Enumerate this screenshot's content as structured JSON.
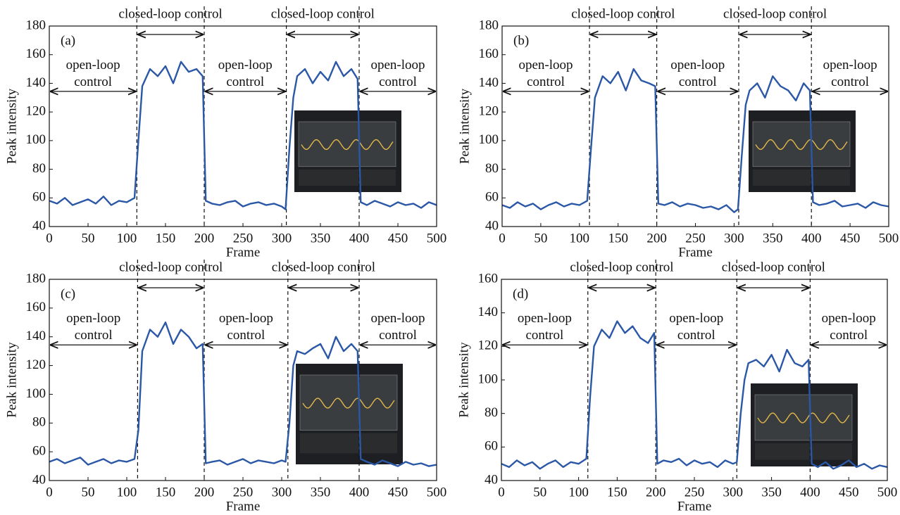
{
  "chart_data": [
    {
      "type": "line",
      "panel_label": "(a)",
      "x_label": "Frame",
      "y_label": "Peak intensity",
      "color": "#2b57a7",
      "xlim": [
        0,
        500
      ],
      "xticks": [
        0,
        50,
        100,
        150,
        200,
        250,
        300,
        350,
        400,
        450,
        500
      ],
      "ylim": [
        40,
        180
      ],
      "yticks": [
        40,
        60,
        80,
        100,
        120,
        140,
        160,
        180
      ],
      "boundaries": [
        113,
        200,
        306,
        400
      ],
      "phase_labels": [
        "open-loop control",
        "closed-loop control",
        "open-loop control",
        "closed-loop control",
        "open-loop control"
      ],
      "x": [
        0,
        10,
        20,
        30,
        40,
        50,
        60,
        70,
        80,
        90,
        100,
        110,
        115,
        120,
        130,
        140,
        150,
        160,
        170,
        180,
        190,
        198,
        202,
        210,
        220,
        230,
        240,
        250,
        260,
        270,
        280,
        290,
        300,
        305,
        310,
        315,
        320,
        330,
        340,
        350,
        360,
        370,
        380,
        390,
        398,
        402,
        410,
        420,
        430,
        440,
        450,
        460,
        470,
        480,
        490,
        500
      ],
      "values": [
        58,
        56,
        60,
        55,
        57,
        59,
        56,
        61,
        55,
        58,
        57,
        60,
        100,
        138,
        150,
        145,
        152,
        140,
        155,
        148,
        150,
        145,
        58,
        56,
        55,
        57,
        58,
        54,
        56,
        57,
        55,
        56,
        54,
        52,
        95,
        130,
        145,
        150,
        140,
        148,
        142,
        155,
        145,
        150,
        143,
        57,
        55,
        58,
        56,
        54,
        57,
        55,
        56,
        53,
        57,
        55
      ]
    },
    {
      "type": "line",
      "panel_label": "(b)",
      "x_label": "Frame",
      "y_label": "Peak intensity",
      "color": "#2b57a7",
      "xlim": [
        0,
        500
      ],
      "xticks": [
        0,
        50,
        100,
        150,
        200,
        250,
        300,
        350,
        400,
        450,
        500
      ],
      "ylim": [
        40,
        180
      ],
      "yticks": [
        40,
        60,
        80,
        100,
        120,
        140,
        160,
        180
      ],
      "boundaries": [
        113,
        200,
        306,
        400
      ],
      "phase_labels": [
        "open-loop control",
        "closed-loop control",
        "open-loop control",
        "closed-loop control",
        "open-loop control"
      ],
      "x": [
        0,
        10,
        20,
        30,
        40,
        50,
        60,
        70,
        80,
        90,
        100,
        110,
        115,
        120,
        130,
        140,
        150,
        160,
        170,
        180,
        190,
        198,
        202,
        210,
        220,
        230,
        240,
        250,
        260,
        270,
        280,
        290,
        300,
        305,
        310,
        315,
        320,
        330,
        340,
        350,
        360,
        370,
        380,
        390,
        398,
        402,
        410,
        420,
        430,
        440,
        450,
        460,
        470,
        480,
        490,
        500
      ],
      "values": [
        55,
        53,
        57,
        54,
        56,
        52,
        55,
        57,
        54,
        56,
        55,
        58,
        95,
        130,
        145,
        140,
        148,
        135,
        150,
        142,
        140,
        138,
        56,
        55,
        57,
        54,
        56,
        55,
        53,
        54,
        52,
        55,
        50,
        52,
        90,
        125,
        135,
        140,
        130,
        145,
        138,
        135,
        128,
        140,
        135,
        57,
        55,
        56,
        58,
        54,
        55,
        56,
        53,
        57,
        55,
        54
      ]
    },
    {
      "type": "line",
      "panel_label": "(c)",
      "x_label": "Frame",
      "y_label": "Peak intensity",
      "color": "#2b57a7",
      "xlim": [
        0,
        500
      ],
      "xticks": [
        0,
        50,
        100,
        150,
        200,
        250,
        300,
        350,
        400,
        450,
        500
      ],
      "ylim": [
        40,
        180
      ],
      "yticks": [
        40,
        60,
        80,
        100,
        120,
        140,
        160,
        180
      ],
      "boundaries": [
        114,
        200,
        308,
        400
      ],
      "phase_labels": [
        "open-loop control",
        "closed-loop control",
        "open-loop control",
        "closed-loop control",
        "open-loop control"
      ],
      "x": [
        0,
        10,
        20,
        30,
        40,
        50,
        60,
        70,
        80,
        90,
        100,
        110,
        115,
        120,
        130,
        140,
        150,
        160,
        170,
        180,
        190,
        198,
        202,
        210,
        220,
        230,
        240,
        250,
        260,
        270,
        280,
        290,
        300,
        305,
        310,
        315,
        320,
        330,
        340,
        350,
        360,
        370,
        380,
        390,
        398,
        402,
        410,
        420,
        430,
        440,
        450,
        460,
        470,
        480,
        490,
        500
      ],
      "values": [
        53,
        55,
        52,
        54,
        56,
        51,
        53,
        55,
        52,
        54,
        53,
        55,
        75,
        130,
        145,
        140,
        150,
        135,
        145,
        140,
        132,
        135,
        52,
        53,
        54,
        51,
        53,
        55,
        52,
        54,
        53,
        52,
        54,
        53,
        80,
        120,
        130,
        128,
        132,
        135,
        125,
        140,
        130,
        135,
        130,
        55,
        53,
        51,
        54,
        52,
        50,
        53,
        51,
        52,
        50,
        51
      ]
    },
    {
      "type": "line",
      "panel_label": "(d)",
      "x_label": "Frame",
      "y_label": "Peak intensity",
      "color": "#2b57a7",
      "xlim": [
        0,
        500
      ],
      "xticks": [
        0,
        50,
        100,
        150,
        200,
        250,
        300,
        350,
        400,
        450,
        500
      ],
      "ylim": [
        40,
        160
      ],
      "yticks": [
        40,
        60,
        80,
        100,
        120,
        140,
        160
      ],
      "boundaries": [
        112,
        200,
        305,
        400
      ],
      "phase_labels": [
        "open-loop control",
        "closed-loop control",
        "open-loop control",
        "closed-loop control",
        "open-loop control"
      ],
      "x": [
        0,
        10,
        20,
        30,
        40,
        50,
        60,
        70,
        80,
        90,
        100,
        110,
        115,
        120,
        130,
        140,
        150,
        160,
        170,
        180,
        190,
        198,
        202,
        210,
        220,
        230,
        240,
        250,
        260,
        270,
        280,
        290,
        300,
        305,
        310,
        315,
        320,
        330,
        340,
        350,
        360,
        370,
        380,
        390,
        398,
        402,
        410,
        420,
        430,
        440,
        450,
        460,
        470,
        480,
        490,
        500
      ],
      "values": [
        50,
        48,
        52,
        49,
        51,
        47,
        50,
        52,
        48,
        51,
        50,
        53,
        90,
        120,
        130,
        125,
        135,
        128,
        132,
        125,
        122,
        128,
        50,
        52,
        51,
        53,
        49,
        52,
        50,
        51,
        48,
        52,
        50,
        51,
        80,
        100,
        110,
        112,
        108,
        115,
        105,
        118,
        110,
        108,
        112,
        50,
        48,
        51,
        47,
        49,
        52,
        48,
        50,
        47,
        49,
        48
      ]
    }
  ]
}
